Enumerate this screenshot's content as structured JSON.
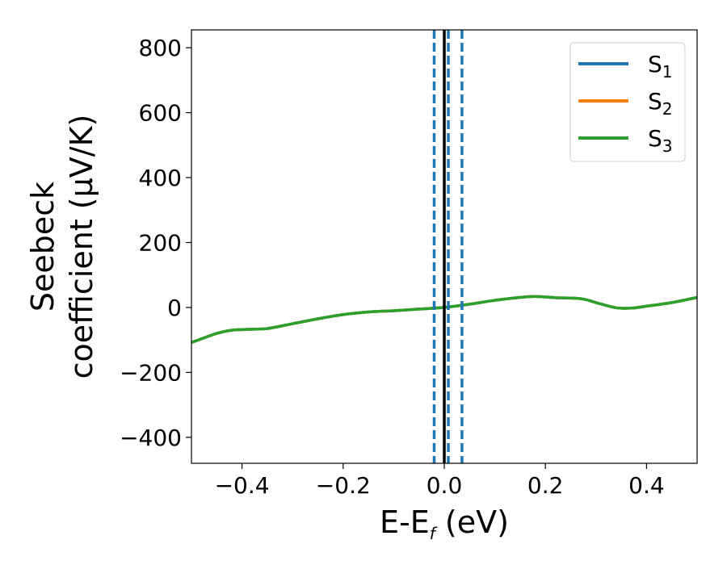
{
  "chart_data": {
    "type": "line",
    "xlabel_main": "E-E",
    "xlabel_sub": "f",
    "xlabel_unit": " (eV)",
    "ylabel_line1": "Seebeck",
    "ylabel_line2": "coefficient  (μV/K)",
    "xlim": [
      -0.5,
      0.5
    ],
    "ylim": [
      -480,
      855
    ],
    "xticks": [
      -0.4,
      -0.2,
      0.0,
      0.2,
      0.4
    ],
    "xtick_labels": [
      "−0.4",
      "−0.2",
      "0.0",
      "0.2",
      "0.4"
    ],
    "yticks": [
      -400,
      -200,
      0,
      200,
      400,
      600,
      800
    ],
    "ytick_labels": [
      "−400",
      "−200",
      "0",
      "200",
      "400",
      "600",
      "800"
    ],
    "grid": false,
    "legend_position": "top-right",
    "series": [
      {
        "name_main": "S",
        "name_sub": "1",
        "color": "#1f77b4",
        "x": [
          -0.5,
          -0.45,
          -0.42,
          -0.38,
          -0.35,
          -0.3,
          -0.25,
          -0.2,
          -0.15,
          -0.1,
          -0.05,
          0.0,
          0.05,
          0.1,
          0.15,
          0.18,
          0.22,
          0.27,
          0.3,
          0.34,
          0.37,
          0.4,
          0.45,
          0.5
        ],
        "y": [
          -108,
          -80,
          -70,
          -67,
          -65,
          -50,
          -35,
          -22,
          -14,
          -10,
          -5,
          0,
          10,
          22,
          31,
          34,
          30,
          27,
          15,
          -1,
          -2,
          4,
          15,
          31
        ]
      },
      {
        "name_main": "S",
        "name_sub": "2",
        "color": "#ff7f0e",
        "x": [
          -0.5,
          -0.45,
          -0.42,
          -0.38,
          -0.35,
          -0.3,
          -0.25,
          -0.2,
          -0.15,
          -0.1,
          -0.05,
          0.0,
          0.05,
          0.1,
          0.15,
          0.18,
          0.22,
          0.27,
          0.3,
          0.34,
          0.37,
          0.4,
          0.45,
          0.5
        ],
        "y": [
          -108,
          -80,
          -70,
          -67,
          -65,
          -50,
          -35,
          -22,
          -14,
          -10,
          -5,
          0,
          10,
          22,
          31,
          34,
          30,
          27,
          15,
          -1,
          -2,
          4,
          15,
          31
        ]
      },
      {
        "name_main": "S",
        "name_sub": "3",
        "color": "#2ca02c",
        "x": [
          -0.5,
          -0.45,
          -0.42,
          -0.38,
          -0.35,
          -0.3,
          -0.25,
          -0.2,
          -0.15,
          -0.1,
          -0.05,
          0.0,
          0.05,
          0.1,
          0.15,
          0.18,
          0.22,
          0.27,
          0.3,
          0.34,
          0.37,
          0.4,
          0.45,
          0.5
        ],
        "y": [
          -108,
          -80,
          -70,
          -67,
          -65,
          -50,
          -35,
          -22,
          -14,
          -10,
          -5,
          0,
          10,
          22,
          31,
          34,
          30,
          27,
          15,
          -1,
          -2,
          4,
          15,
          31
        ]
      }
    ],
    "vertical_lines": [
      {
        "x": -0.02,
        "style": "dashed",
        "color": "#1f77b4"
      },
      {
        "x": 0.008,
        "style": "dashed",
        "color": "#1f77b4"
      },
      {
        "x": 0.035,
        "style": "dashed",
        "color": "#1f77b4"
      },
      {
        "x": 0.0,
        "style": "solid",
        "color": "#000000"
      }
    ]
  }
}
